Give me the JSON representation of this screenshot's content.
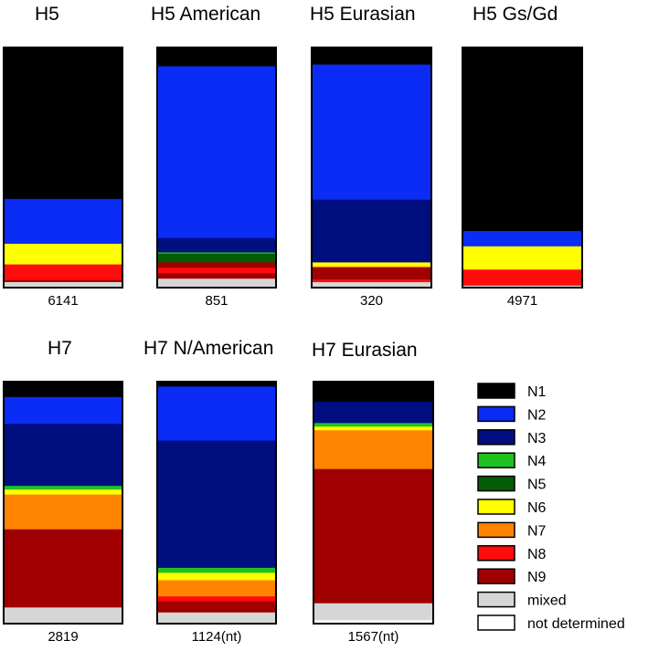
{
  "colors": {
    "N1": "#000000",
    "N2": "#0a2cf5",
    "N3": "#000e80",
    "N4": "#1fc21f",
    "N5": "#045d04",
    "N6": "#ffff00",
    "N7": "#ff8400",
    "N8": "#ff0d0d",
    "N9": "#a00000",
    "mixed": "#d6d6d6",
    "not determined": "#ffffff"
  },
  "chart_data": [
    {
      "type": "bar",
      "subtype": "stacked-100-percent",
      "title": "H5",
      "count_label": "6141",
      "series": [
        {
          "name": "N1",
          "value": 60.1
        },
        {
          "name": "N2",
          "value": 17.8
        },
        {
          "name": "N6",
          "value": 8.2
        },
        {
          "name": "N8",
          "value": 6.2
        },
        {
          "name": "N9",
          "value": 0.8
        },
        {
          "name": "mixed",
          "value": 2.2
        }
      ]
    },
    {
      "type": "bar",
      "subtype": "stacked-100-percent",
      "title": "H5 American",
      "count_label": "851",
      "series": [
        {
          "name": "N1",
          "value": 7.6
        },
        {
          "name": "N2",
          "value": 69.3
        },
        {
          "name": "N3",
          "value": 5.8
        },
        {
          "name": "N4",
          "value": 0.5
        },
        {
          "name": "N5",
          "value": 3.5
        },
        {
          "name": "N9",
          "value": 2.2
        },
        {
          "name": "N8",
          "value": 2.2
        },
        {
          "name": "N9",
          "value": 2.2
        },
        {
          "name": "mixed",
          "value": 3.6
        }
      ]
    },
    {
      "type": "bar",
      "subtype": "stacked-100-percent",
      "title": "H5 Eurasian",
      "count_label": "320",
      "series": [
        {
          "name": "N1",
          "value": 6.9
        },
        {
          "name": "N2",
          "value": 54.7
        },
        {
          "name": "N3",
          "value": 25.4
        },
        {
          "name": "N6",
          "value": 1.8
        },
        {
          "name": "N8",
          "value": 0.4
        },
        {
          "name": "N9",
          "value": 4.7
        },
        {
          "name": "N8",
          "value": 1.1
        },
        {
          "name": "mixed",
          "value": 2.2
        }
      ]
    },
    {
      "type": "bar",
      "subtype": "stacked-100-percent",
      "title": "H5 Gs/Gd",
      "count_label": "4971",
      "series": [
        {
          "name": "N1",
          "value": 74.3
        },
        {
          "name": "N2",
          "value": 6.2
        },
        {
          "name": "N6",
          "value": 9.4
        },
        {
          "name": "N8",
          "value": 6.5
        },
        {
          "name": "mixed",
          "value": 0.8
        }
      ]
    },
    {
      "type": "bar",
      "subtype": "stacked-100-percent",
      "title": "H7",
      "count_label": "2819",
      "series": [
        {
          "name": "N1",
          "value": 6.2
        },
        {
          "name": "N2",
          "value": 10.8
        },
        {
          "name": "N3",
          "value": 25.0
        },
        {
          "name": "N4",
          "value": 1.5
        },
        {
          "name": "N6",
          "value": 2.0
        },
        {
          "name": "N7",
          "value": 14.0
        },
        {
          "name": "N9",
          "value": 31.5
        },
        {
          "name": "mixed",
          "value": 6.5
        }
      ]
    },
    {
      "type": "bar",
      "subtype": "stacked-100-percent",
      "title": "H7 N/American",
      "count_label": "1124(nt)",
      "series": [
        {
          "name": "N1",
          "value": 2.0
        },
        {
          "name": "N2",
          "value": 21.8
        },
        {
          "name": "N3",
          "value": 51.3
        },
        {
          "name": "N4",
          "value": 2.0
        },
        {
          "name": "N6",
          "value": 3.0
        },
        {
          "name": "N7",
          "value": 6.5
        },
        {
          "name": "N8",
          "value": 2.0
        },
        {
          "name": "N9",
          "value": 4.5
        },
        {
          "name": "mixed",
          "value": 4.5
        }
      ]
    },
    {
      "type": "bar",
      "subtype": "stacked-100-percent",
      "title": "H7 Eurasian",
      "count_label": "1567(nt)",
      "series": [
        {
          "name": "N1",
          "value": 8.3
        },
        {
          "name": "N3",
          "value": 8.8
        },
        {
          "name": "N4",
          "value": 1.5
        },
        {
          "name": "N6",
          "value": 1.5
        },
        {
          "name": "N7",
          "value": 16.0
        },
        {
          "name": "N9",
          "value": 55.5
        },
        {
          "name": "mixed",
          "value": 7.0
        },
        {
          "name": "not determined",
          "value": 1.4
        }
      ]
    }
  ],
  "legend": [
    {
      "key": "N1",
      "label": "N1"
    },
    {
      "key": "N2",
      "label": "N2"
    },
    {
      "key": "N3",
      "label": "N3"
    },
    {
      "key": "N4",
      "label": "N4"
    },
    {
      "key": "N5",
      "label": "N5"
    },
    {
      "key": "N6",
      "label": "N6"
    },
    {
      "key": "N7",
      "label": "N7"
    },
    {
      "key": "N8",
      "label": "N8"
    },
    {
      "key": "N9",
      "label": "N9"
    },
    {
      "key": "mixed",
      "label": "mixed"
    },
    {
      "key": "not determined",
      "label": "not determined"
    }
  ]
}
